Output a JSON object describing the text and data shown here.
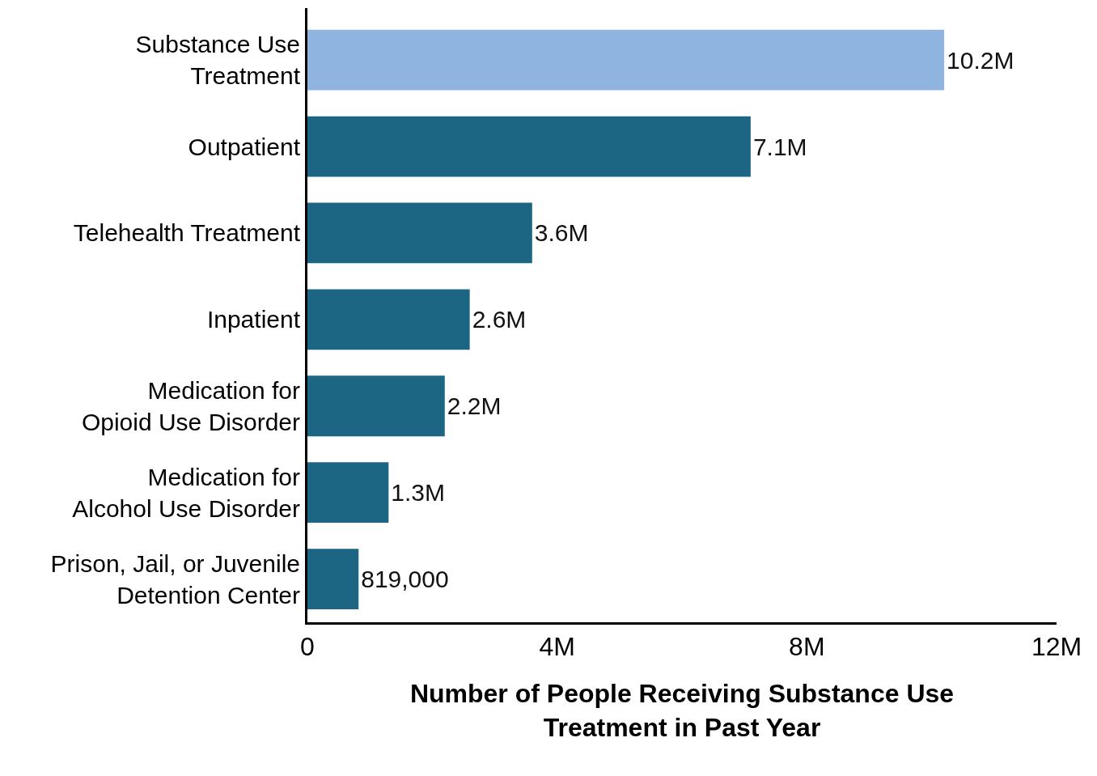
{
  "chart_data": {
    "type": "bar",
    "orientation": "horizontal",
    "categories": [
      "Substance Use\nTreatment",
      "Outpatient",
      "Telehealth Treatment",
      "Inpatient",
      "Medication for\nOpioid Use Disorder",
      "Medication for\nAlcohol Use Disorder",
      "Prison, Jail, or Juvenile\nDetention Center"
    ],
    "values": [
      10200000,
      7100000,
      3600000,
      2600000,
      2200000,
      1300000,
      819000
    ],
    "value_labels": [
      "10.2M",
      "7.1M",
      "3.6M",
      "2.6M",
      "2.2M",
      "1.3M",
      "819,000"
    ],
    "colors": [
      "#8fb4e0",
      "#1d6683",
      "#1d6683",
      "#1d6683",
      "#1d6683",
      "#1d6683",
      "#1d6683"
    ],
    "xlabel": "Number of People Receiving Substance Use\nTreatment in Past Year",
    "xlim": [
      0,
      12000000
    ],
    "xticks": [
      {
        "value": 0,
        "label": "0"
      },
      {
        "value": 4000000,
        "label": "4M"
      },
      {
        "value": 8000000,
        "label": "8M"
      },
      {
        "value": 12000000,
        "label": "12M"
      }
    ],
    "grid": false
  }
}
